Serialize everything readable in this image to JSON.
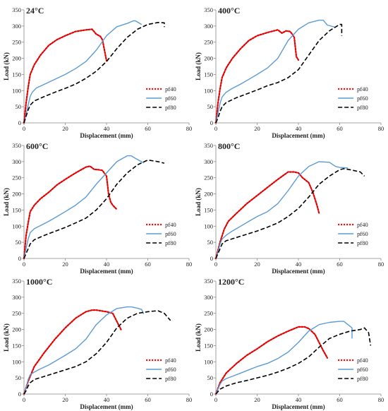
{
  "legend": [
    {
      "name": "pf40",
      "color": "#e60000",
      "style": "dotted"
    },
    {
      "name": "pf60",
      "color": "#5b9bd5",
      "style": "solid"
    },
    {
      "name": "pf80",
      "color": "#000000",
      "style": "dashed"
    }
  ],
  "chart_data": [
    {
      "type": "line",
      "title": "24°C",
      "xlabel": "Displacement (mm)",
      "ylabel": "Load (kN)",
      "xlim": [
        0,
        80
      ],
      "ylim": [
        0,
        350
      ],
      "xticks": [
        0,
        20,
        40,
        60,
        80
      ],
      "yticks": [
        0,
        50,
        100,
        150,
        200,
        250,
        300,
        350
      ],
      "legend_position": "right",
      "series": [
        {
          "name": "pf40",
          "x": [
            0,
            1,
            2,
            3,
            5,
            8,
            12,
            16,
            20,
            25,
            30,
            33,
            35,
            37,
            38,
            39,
            40,
            41
          ],
          "y": [
            0,
            60,
            110,
            150,
            180,
            210,
            240,
            258,
            270,
            283,
            288,
            290,
            275,
            268,
            258,
            225,
            192,
            195
          ]
        },
        {
          "name": "pf60",
          "x": [
            0,
            1,
            2,
            3,
            4,
            6,
            10,
            15,
            20,
            25,
            30,
            35,
            40,
            45,
            50,
            53,
            54,
            57
          ],
          "y": [
            0,
            25,
            55,
            82,
            95,
            108,
            120,
            135,
            150,
            168,
            190,
            225,
            270,
            298,
            308,
            316,
            316,
            305
          ]
        },
        {
          "name": "pf80",
          "x": [
            0,
            1,
            2,
            3,
            5,
            10,
            15,
            20,
            25,
            30,
            35,
            40,
            45,
            50,
            55,
            60,
            65,
            68,
            68
          ],
          "y": [
            0,
            20,
            40,
            55,
            68,
            82,
            95,
            107,
            120,
            138,
            160,
            190,
            230,
            265,
            290,
            305,
            311,
            310,
            297
          ]
        }
      ]
    },
    {
      "type": "line",
      "title": "400°C",
      "xlabel": "Displacement (mm)",
      "ylabel": "Load (kN)",
      "xlim": [
        0,
        80
      ],
      "ylim": [
        0,
        350
      ],
      "xticks": [
        0,
        20,
        40,
        60,
        80
      ],
      "yticks": [
        0,
        50,
        100,
        150,
        200,
        250,
        300,
        350
      ],
      "legend_position": "right",
      "series": [
        {
          "name": "pf40",
          "x": [
            0,
            1,
            2,
            3,
            5,
            8,
            12,
            16,
            20,
            25,
            30,
            32,
            34,
            36,
            37,
            38,
            39,
            40
          ],
          "y": [
            0,
            60,
            105,
            140,
            170,
            200,
            230,
            255,
            270,
            280,
            288,
            278,
            285,
            283,
            275,
            265,
            205,
            195
          ]
        },
        {
          "name": "pf60",
          "x": [
            0,
            1,
            2,
            3,
            5,
            8,
            12,
            16,
            20,
            25,
            30,
            35,
            40,
            45,
            50,
            52,
            54,
            58
          ],
          "y": [
            0,
            30,
            60,
            80,
            95,
            107,
            120,
            135,
            150,
            170,
            200,
            255,
            290,
            310,
            318,
            318,
            303,
            296
          ]
        },
        {
          "name": "pf80",
          "x": [
            0,
            1,
            2,
            3,
            5,
            10,
            15,
            20,
            25,
            30,
            35,
            40,
            45,
            50,
            55,
            60,
            61,
            61
          ],
          "y": [
            0,
            15,
            35,
            50,
            63,
            78,
            90,
            102,
            115,
            125,
            140,
            165,
            210,
            255,
            285,
            305,
            305,
            270
          ]
        }
      ]
    },
    {
      "type": "line",
      "title": "600°C",
      "xlabel": "Displacement (mm)",
      "ylabel": "Load (kN)",
      "xlim": [
        0,
        80
      ],
      "ylim": [
        0,
        350
      ],
      "xticks": [
        0,
        20,
        40,
        60,
        80
      ],
      "yticks": [
        0,
        50,
        100,
        150,
        200,
        250,
        300,
        350
      ],
      "legend_position": "right",
      "series": [
        {
          "name": "pf40",
          "x": [
            0,
            1,
            2,
            3,
            5,
            8,
            12,
            16,
            20,
            25,
            30,
            32,
            34,
            36,
            38,
            40,
            41,
            42,
            43,
            45
          ],
          "y": [
            0,
            70,
            110,
            145,
            165,
            185,
            205,
            228,
            245,
            265,
            283,
            286,
            276,
            275,
            273,
            255,
            200,
            175,
            165,
            152
          ]
        },
        {
          "name": "pf60",
          "x": [
            0,
            1,
            2,
            3,
            5,
            8,
            12,
            16,
            20,
            25,
            30,
            35,
            40,
            45,
            50,
            52,
            54,
            58
          ],
          "y": [
            0,
            30,
            60,
            80,
            92,
            102,
            115,
            130,
            145,
            165,
            190,
            230,
            265,
            300,
            318,
            318,
            310,
            296
          ]
        },
        {
          "name": "pf80",
          "x": [
            0,
            1,
            2,
            3,
            5,
            10,
            15,
            20,
            25,
            30,
            35,
            40,
            45,
            50,
            55,
            60,
            65,
            68
          ],
          "y": [
            0,
            15,
            30,
            45,
            58,
            72,
            84,
            96,
            110,
            125,
            150,
            185,
            230,
            265,
            290,
            305,
            300,
            295
          ]
        }
      ]
    },
    {
      "type": "line",
      "title": "800°C",
      "xlabel": "Displacement (mm)",
      "ylabel": "Load (kN)",
      "xlim": [
        0,
        80
      ],
      "ylim": [
        0,
        350
      ],
      "xticks": [
        0,
        20,
        40,
        60,
        80
      ],
      "yticks": [
        0,
        50,
        100,
        150,
        200,
        250,
        300,
        350
      ],
      "legend_position": "right",
      "series": [
        {
          "name": "pf40",
          "x": [
            0,
            2,
            4,
            6,
            10,
            15,
            20,
            25,
            30,
            35,
            38,
            40,
            42,
            45,
            47,
            49,
            50
          ],
          "y": [
            0,
            50,
            90,
            115,
            140,
            170,
            195,
            220,
            245,
            268,
            268,
            265,
            250,
            235,
            205,
            165,
            140
          ]
        },
        {
          "name": "pf60",
          "x": [
            0,
            1,
            2,
            3,
            5,
            8,
            12,
            16,
            20,
            25,
            30,
            35,
            40,
            45,
            50,
            55,
            58,
            60,
            62,
            64
          ],
          "y": [
            0,
            20,
            45,
            60,
            72,
            85,
            100,
            115,
            130,
            145,
            170,
            210,
            255,
            285,
            300,
            298,
            285,
            282,
            281,
            280
          ]
        },
        {
          "name": "pf80",
          "x": [
            0,
            1,
            2,
            3,
            5,
            10,
            15,
            20,
            25,
            30,
            35,
            40,
            45,
            50,
            55,
            60,
            62,
            65,
            70,
            72
          ],
          "y": [
            0,
            15,
            30,
            45,
            55,
            65,
            75,
            85,
            97,
            110,
            130,
            155,
            190,
            230,
            255,
            275,
            278,
            275,
            268,
            255
          ]
        }
      ]
    },
    {
      "type": "line",
      "title": "1000°C",
      "xlabel": "Displacement (mm)",
      "ylabel": "Load (kN)",
      "xlim": [
        0,
        80
      ],
      "ylim": [
        0,
        350
      ],
      "xticks": [
        0,
        20,
        40,
        60,
        80
      ],
      "yticks": [
        0,
        50,
        100,
        150,
        200,
        250,
        300,
        350
      ],
      "legend_position": "right",
      "series": [
        {
          "name": "pf40",
          "x": [
            0,
            2,
            5,
            10,
            15,
            20,
            25,
            30,
            33,
            35,
            40,
            43,
            45,
            47
          ],
          "y": [
            0,
            40,
            85,
            130,
            170,
            205,
            235,
            255,
            260,
            260,
            255,
            250,
            225,
            200
          ]
        },
        {
          "name": "pf60",
          "x": [
            0,
            1,
            2,
            3,
            5,
            8,
            12,
            16,
            20,
            25,
            30,
            35,
            40,
            45,
            50,
            52,
            55,
            57,
            58
          ],
          "y": [
            0,
            20,
            45,
            60,
            68,
            78,
            90,
            105,
            120,
            140,
            170,
            215,
            245,
            265,
            270,
            270,
            266,
            262,
            248
          ]
        },
        {
          "name": "pf80",
          "x": [
            0,
            1,
            2,
            3,
            5,
            10,
            15,
            20,
            25,
            30,
            35,
            40,
            45,
            50,
            55,
            60,
            63,
            65,
            68,
            71
          ],
          "y": [
            0,
            10,
            25,
            35,
            45,
            55,
            65,
            75,
            85,
            100,
            125,
            160,
            205,
            235,
            250,
            255,
            257,
            258,
            250,
            228
          ]
        }
      ]
    },
    {
      "type": "line",
      "title": "1200°C",
      "xlabel": "Displacement (mm)",
      "ylabel": "Load (kN)",
      "xlim": [
        0,
        80
      ],
      "ylim": [
        0,
        350
      ],
      "xticks": [
        0,
        20,
        40,
        60,
        80
      ],
      "yticks": [
        0,
        50,
        100,
        150,
        200,
        250,
        300,
        350
      ],
      "legend_position": "right",
      "series": [
        {
          "name": "pf40",
          "x": [
            0,
            2,
            5,
            10,
            15,
            20,
            25,
            30,
            35,
            40,
            43,
            45,
            48,
            50,
            52,
            54
          ],
          "y": [
            0,
            35,
            65,
            95,
            120,
            140,
            162,
            180,
            195,
            208,
            208,
            203,
            185,
            160,
            135,
            112
          ]
        },
        {
          "name": "pf60",
          "x": [
            0,
            1,
            2,
            3,
            5,
            8,
            12,
            16,
            20,
            25,
            30,
            35,
            40,
            45,
            50,
            55,
            60,
            62,
            64,
            66,
            66
          ],
          "y": [
            0,
            15,
            30,
            40,
            48,
            55,
            65,
            75,
            85,
            95,
            110,
            130,
            160,
            195,
            215,
            222,
            225,
            225,
            215,
            205,
            172
          ]
        },
        {
          "name": "pf80",
          "x": [
            0,
            2,
            5,
            10,
            15,
            20,
            25,
            30,
            35,
            40,
            45,
            50,
            55,
            60,
            65,
            70,
            72,
            74,
            75
          ],
          "y": [
            0,
            15,
            25,
            35,
            42,
            50,
            58,
            68,
            80,
            95,
            115,
            145,
            172,
            185,
            195,
            200,
            205,
            190,
            150
          ]
        }
      ]
    }
  ]
}
